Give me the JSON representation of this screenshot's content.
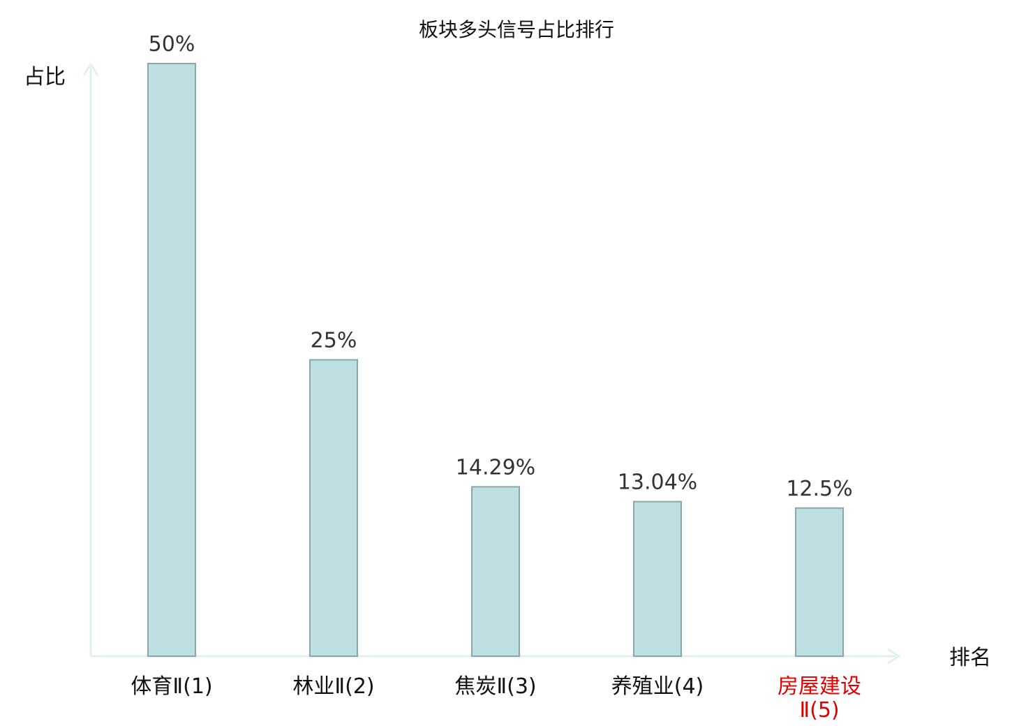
{
  "chart_data": {
    "type": "bar",
    "title": "板块多头信号占比排行",
    "ylabel": "占比",
    "xlabel": "排名",
    "categories": [
      {
        "label": [
          "体育Ⅱ(1)"
        ],
        "highlight": false
      },
      {
        "label": [
          "林业Ⅱ(2)"
        ],
        "highlight": false
      },
      {
        "label": [
          "焦炭Ⅱ(3)"
        ],
        "highlight": false
      },
      {
        "label": [
          "养殖业(4)"
        ],
        "highlight": false
      },
      {
        "label": [
          "房屋建设",
          "Ⅱ(5)"
        ],
        "highlight": true
      }
    ],
    "values": [
      50,
      25,
      14.29,
      13.04,
      12.5
    ],
    "value_labels": [
      "50%",
      "25%",
      "14.29%",
      "13.04%",
      "12.5%"
    ],
    "ylim": [
      0,
      50
    ],
    "grid": false,
    "colors": {
      "bar_fill": "#bde1e3",
      "bar_stroke": "#8aa6a8",
      "axis": "#e0f2ef",
      "text": "#111111",
      "value_text": "#333333",
      "highlight_text": "#e00000"
    }
  }
}
